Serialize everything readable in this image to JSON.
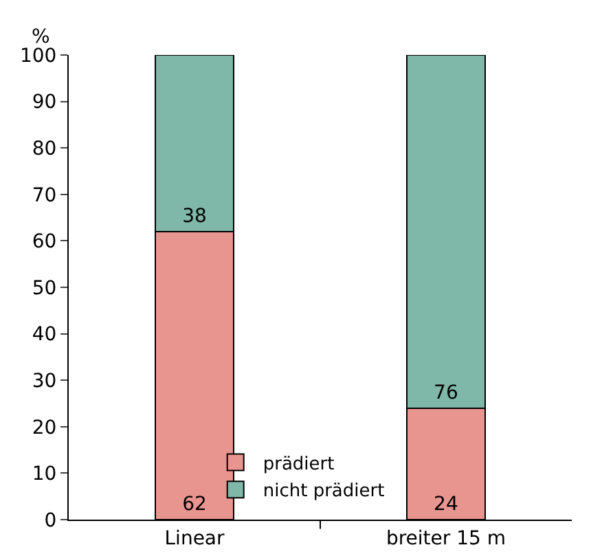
{
  "chart_data": {
    "type": "bar",
    "stacked": true,
    "ylabel": "%",
    "categories": [
      "Linear",
      "breiter 15 m"
    ],
    "series": [
      {
        "name": "prädiert",
        "color": "#e8958f",
        "values": [
          62,
          24
        ]
      },
      {
        "name": "nicht prädiert",
        "color": "#7fb8a8",
        "values": [
          38,
          76
        ]
      }
    ],
    "ylim": [
      0,
      100
    ],
    "yticks": [
      0,
      10,
      20,
      30,
      40,
      50,
      60,
      70,
      80,
      90,
      100
    ],
    "grid": false,
    "legend": "bottom",
    "data_labels": true
  }
}
